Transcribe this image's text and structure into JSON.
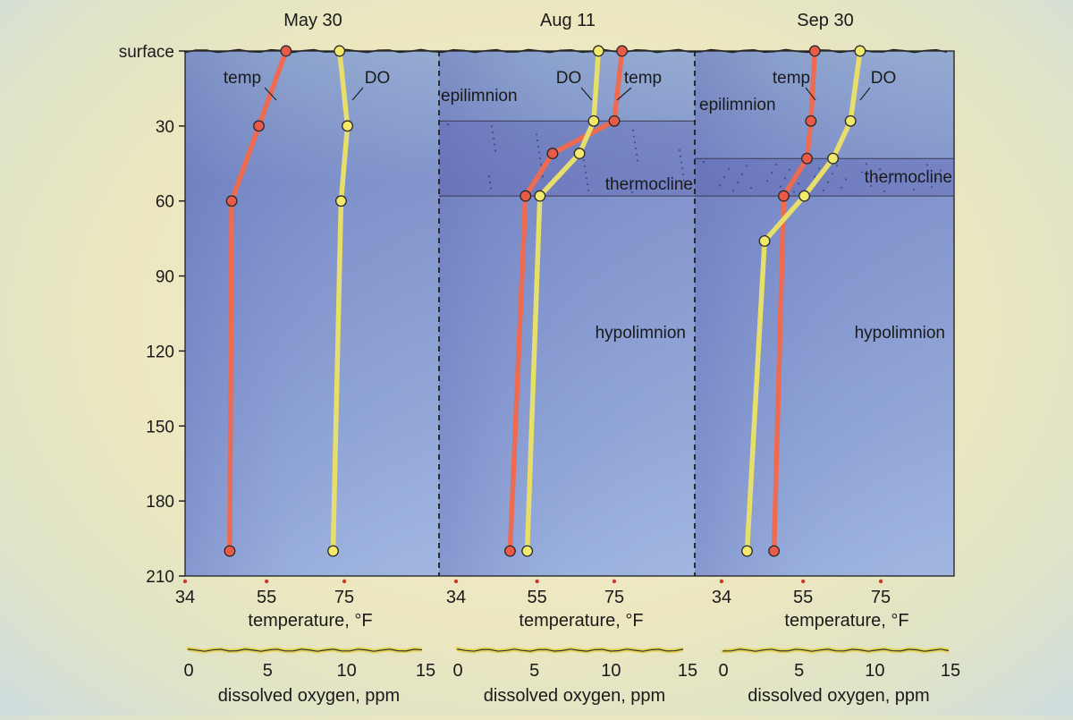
{
  "chart_data": {
    "type": "line",
    "y_axis": {
      "label_top": "surface",
      "ticks": [
        30,
        60,
        90,
        120,
        150,
        180,
        210
      ],
      "range": [
        0,
        210
      ],
      "inverted": true
    },
    "temperature_axis": {
      "label": "temperature, °F",
      "ticks": [
        34,
        55,
        75
      ],
      "range": [
        34,
        95
      ]
    },
    "oxygen_axis": {
      "label": "dissolved oxygen, ppm",
      "ticks": [
        0,
        5,
        10,
        15
      ],
      "range": [
        0,
        15
      ]
    },
    "panels": [
      {
        "title": "May 30",
        "labels": {
          "temp": "temp",
          "do": "DO"
        },
        "layers": [],
        "series": [
          {
            "name": "temp",
            "color": "#ee6a50",
            "points": [
              [
                60,
                0
              ],
              [
                53,
                30
              ],
              [
                46,
                60
              ],
              [
                45.5,
                200
              ]
            ]
          },
          {
            "name": "DO",
            "color": "#e8de6a",
            "points": [
              [
                9.7,
                0
              ],
              [
                10.2,
                30
              ],
              [
                9.8,
                60
              ],
              [
                9.3,
                200
              ]
            ]
          }
        ]
      },
      {
        "title": "Aug 11",
        "labels": {
          "temp": "temp",
          "do": "DO"
        },
        "layers": [
          {
            "label": "epilimnion",
            "from": 0,
            "to": 28
          },
          {
            "label": "thermocline",
            "from": 28,
            "to": 58
          },
          {
            "label": "hypolimnion",
            "from": 58,
            "to": 210
          }
        ],
        "series": [
          {
            "name": "temp",
            "color": "#ee6a50",
            "points": [
              [
                77,
                0
              ],
              [
                75,
                28
              ],
              [
                59,
                41
              ],
              [
                52,
                58
              ],
              [
                48,
                200
              ]
            ]
          },
          {
            "name": "DO",
            "color": "#e8de6a",
            "points": [
              [
                9.0,
                0
              ],
              [
                8.7,
                28
              ],
              [
                7.8,
                41
              ],
              [
                5.3,
                58
              ],
              [
                4.5,
                200
              ]
            ]
          }
        ]
      },
      {
        "title": "Sep 30",
        "labels": {
          "temp": "temp",
          "do": "DO"
        },
        "layers": [
          {
            "label": "epilimnion",
            "from": 0,
            "to": 43
          },
          {
            "label": "thermocline",
            "from": 43,
            "to": 58
          },
          {
            "label": "hypolimnion",
            "from": 58,
            "to": 210
          }
        ],
        "series": [
          {
            "name": "temp",
            "color": "#ee6a50",
            "points": [
              [
                58,
                0
              ],
              [
                57,
                28
              ],
              [
                56,
                43
              ],
              [
                50,
                58
              ],
              [
                47.5,
                200
              ]
            ]
          },
          {
            "name": "DO",
            "color": "#e8de6a",
            "points": [
              [
                8.7,
                0
              ],
              [
                8.1,
                28
              ],
              [
                7.0,
                43
              ],
              [
                5.2,
                58
              ],
              [
                2.7,
                76
              ],
              [
                1.6,
                200
              ]
            ]
          }
        ]
      }
    ]
  }
}
